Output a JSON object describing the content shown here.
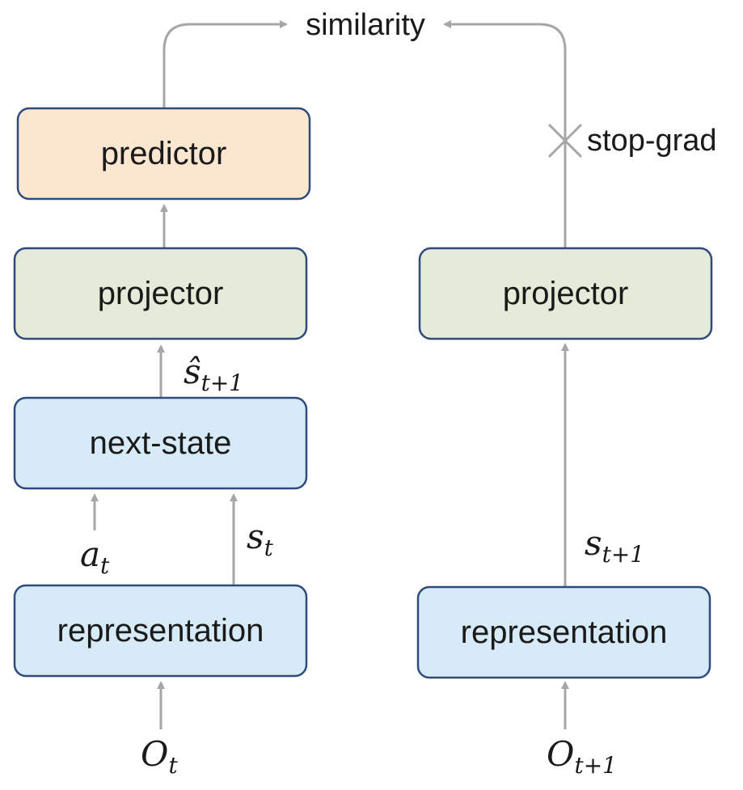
{
  "boxes": {
    "predictor": "predictor",
    "projector_left": "projector",
    "next_state": "next-state",
    "representation_left": "representation",
    "projector_right": "projector",
    "representation_right": "representation"
  },
  "labels": {
    "similarity": "similarity",
    "stop_grad": "stop-grad",
    "s_hat": {
      "base": "ŝ",
      "sub": "t+1"
    },
    "a_t": {
      "base": "a",
      "sub": "t"
    },
    "s_t": {
      "base": "s",
      "sub": "t"
    },
    "s_t1": {
      "base": "s",
      "sub": "t+1"
    },
    "o_t": {
      "base": "O",
      "sub": "t"
    },
    "o_t1": {
      "base": "O",
      "sub": "t+1"
    }
  },
  "colors": {
    "predictor_fill": "#fbe6d0",
    "projector_fill": "#e4ebd8",
    "encoder_fill": "#d6eaf8",
    "box_stroke": "#2f4b7c",
    "arrow": "#a6a6a6"
  }
}
